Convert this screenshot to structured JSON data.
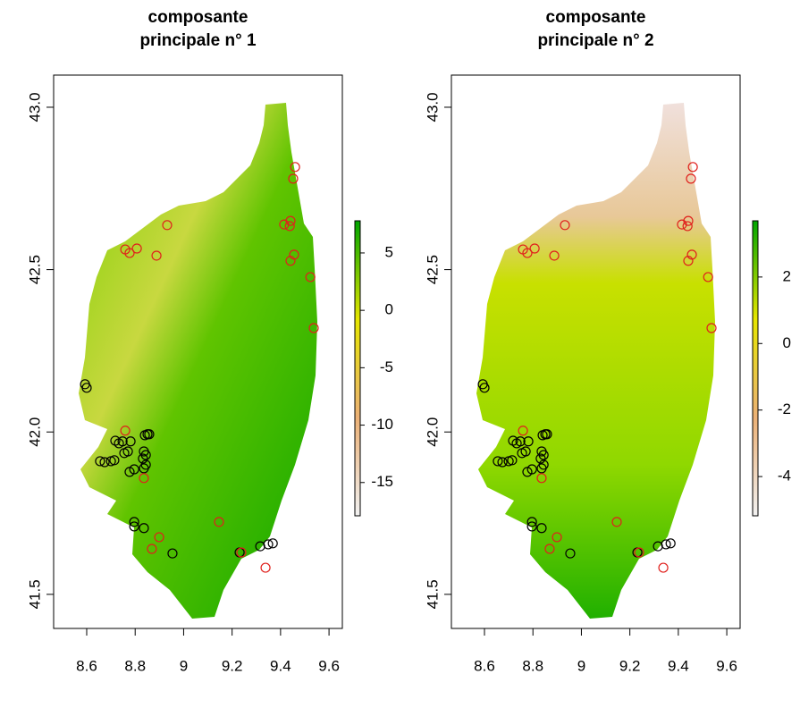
{
  "chart_data": [
    {
      "type": "scatter",
      "title": [
        "composante",
        "principale n° 1"
      ],
      "xlim": [
        8.4635,
        9.655
      ],
      "ylim": [
        41.395,
        43.099
      ],
      "xticks": [
        8.6,
        8.8,
        9.0,
        9.2,
        9.4,
        9.6
      ],
      "yticks": [
        {
          "value": 41.5,
          "label": "41.5"
        },
        {
          "value": 42,
          "label": "42.0"
        },
        {
          "value": 42.5,
          "label": "42.5"
        },
        {
          "value": 43,
          "label": "43.0"
        }
      ],
      "zlim": [
        -17.9,
        7.8
      ],
      "zticks": [
        5,
        0,
        -5,
        -10,
        -15
      ],
      "colorscale": [
        "#F2F2F2",
        "#ECB176",
        "#E6E600",
        "#00A600"
      ],
      "series": [
        {
          "color": "#000000",
          "x": [
            8.593,
            8.6,
            8.718,
            8.733,
            8.748,
            8.77,
            8.755,
            8.781,
            8.714,
            8.7,
            8.674,
            8.655,
            8.796,
            8.777,
            8.84,
            8.851,
            8.858,
            8.836,
            8.832,
            8.844,
            8.844,
            8.836,
            8.796,
            8.796,
            8.836,
            8.954,
            9.316,
            9.349,
            9.368,
            9.231
          ],
          "y": [
            42.147,
            42.136,
            41.973,
            41.965,
            41.971,
            41.94,
            41.935,
            41.971,
            41.913,
            41.91,
            41.907,
            41.91,
            41.885,
            41.877,
            41.99,
            41.993,
            41.993,
            41.94,
            41.918,
            41.929,
            41.899,
            41.888,
            41.723,
            41.709,
            41.704,
            41.626,
            41.648,
            41.654,
            41.657,
            41.629
          ]
        },
        {
          "color": "#e0201c",
          "x": [
            9.46,
            9.452,
            8.932,
            9.441,
            9.415,
            9.438,
            8.759,
            8.807,
            8.777,
            8.888,
            9.441,
            9.456,
            9.523,
            9.537,
            8.759,
            8.836,
            9.146,
            8.899,
            8.869,
            9.238,
            9.338
          ],
          "y": [
            42.816,
            42.78,
            42.637,
            42.65,
            42.639,
            42.634,
            42.562,
            42.565,
            42.551,
            42.543,
            42.527,
            42.546,
            42.477,
            42.32,
            42.004,
            41.858,
            41.723,
            41.676,
            41.64,
            41.629,
            41.582
          ]
        }
      ]
    },
    {
      "type": "scatter",
      "title": [
        "composante",
        "principale n° 2"
      ],
      "xlim": [
        8.4635,
        9.655
      ],
      "ylim": [
        41.395,
        43.099
      ],
      "xticks": [
        8.6,
        8.8,
        9.0,
        9.2,
        9.4,
        9.6
      ],
      "yticks": [
        {
          "value": 41.5,
          "label": "41.5"
        },
        {
          "value": 42,
          "label": "42.0"
        },
        {
          "value": 42.5,
          "label": "42.5"
        },
        {
          "value": 43,
          "label": "43.0"
        }
      ],
      "zlim": [
        -5.18,
        3.69
      ],
      "zticks": [
        2,
        0,
        -2,
        -4
      ],
      "colorscale": [
        "#F2F2F2",
        "#ECB176",
        "#E6E600",
        "#00A600"
      ],
      "series": [
        {
          "color": "#000000",
          "x": [
            8.593,
            8.6,
            8.718,
            8.733,
            8.748,
            8.77,
            8.755,
            8.781,
            8.714,
            8.7,
            8.674,
            8.655,
            8.796,
            8.777,
            8.84,
            8.851,
            8.858,
            8.836,
            8.832,
            8.844,
            8.844,
            8.836,
            8.796,
            8.796,
            8.836,
            8.954,
            9.316,
            9.349,
            9.368,
            9.231
          ],
          "y": [
            42.147,
            42.136,
            41.973,
            41.965,
            41.971,
            41.94,
            41.935,
            41.971,
            41.913,
            41.91,
            41.907,
            41.91,
            41.885,
            41.877,
            41.99,
            41.993,
            41.993,
            41.94,
            41.918,
            41.929,
            41.899,
            41.888,
            41.723,
            41.709,
            41.704,
            41.626,
            41.648,
            41.654,
            41.657,
            41.629
          ]
        },
        {
          "color": "#e0201c",
          "x": [
            9.46,
            9.452,
            8.932,
            9.441,
            9.415,
            9.438,
            8.759,
            8.807,
            8.777,
            8.888,
            9.441,
            9.456,
            9.523,
            9.537,
            8.759,
            8.836,
            9.146,
            8.899,
            8.869,
            9.238,
            9.338
          ],
          "y": [
            42.816,
            42.78,
            42.637,
            42.65,
            42.639,
            42.634,
            42.562,
            42.565,
            42.551,
            42.543,
            42.527,
            42.546,
            42.477,
            42.32,
            42.004,
            41.858,
            41.723,
            41.676,
            41.64,
            41.629,
            41.582
          ]
        }
      ]
    }
  ]
}
